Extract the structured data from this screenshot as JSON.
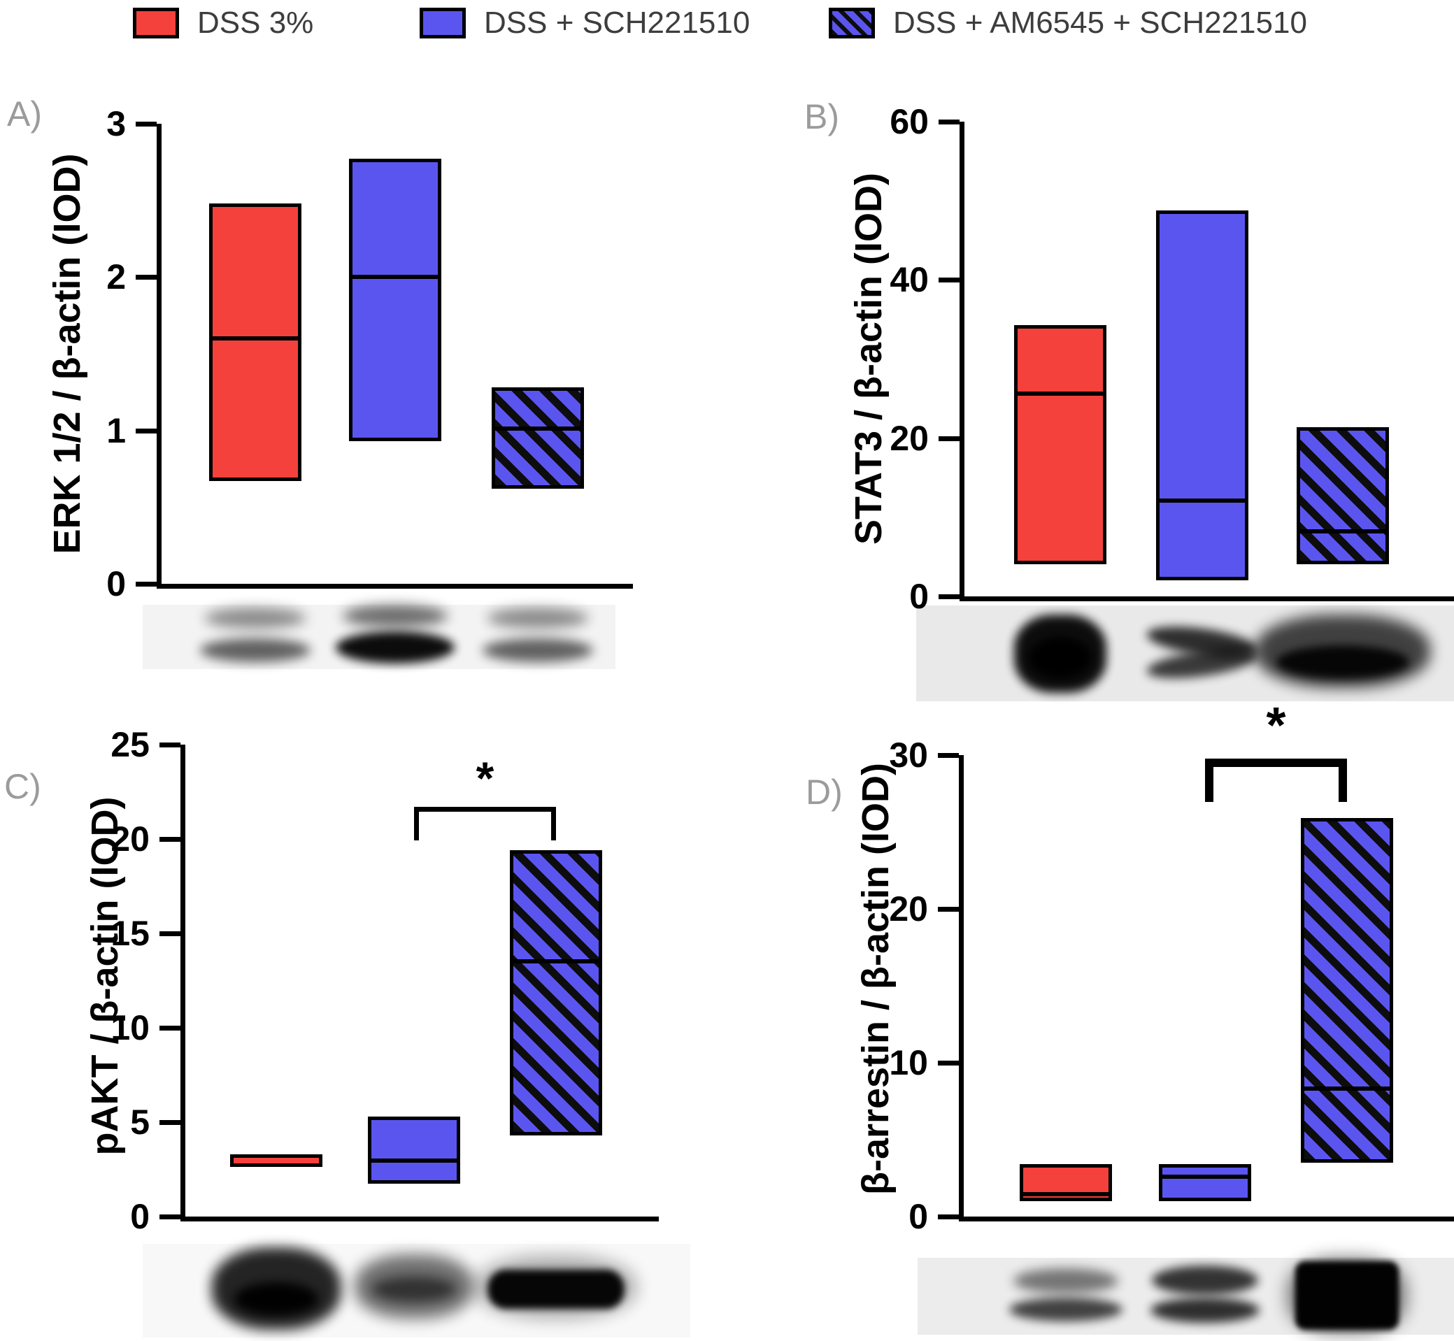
{
  "colors": {
    "red": "#f5413c",
    "blue": "#5b55f0",
    "hatch_stripe": "#0d0d0d",
    "axis": "#000000",
    "panel_letter": "#9b9b9b",
    "legend_text": "#3d3d3d"
  },
  "legend": {
    "items": [
      {
        "label": "DSS 3%",
        "style": "red"
      },
      {
        "label": "DSS + SCH221510",
        "style": "blue"
      },
      {
        "label": "DSS + AM6545 + SCH221510",
        "style": "hatch"
      }
    ]
  },
  "chart_data": [
    {
      "panel_label": "A)",
      "type": "floating-bar",
      "ylabel": "ERK 1/2 / β-actin (IOD)",
      "ylim": [
        0,
        3
      ],
      "yticks": [
        0,
        1,
        2,
        3
      ],
      "grid": false,
      "categories": [
        "DSS 3%",
        "DSS + SCH221510",
        "DSS + AM6545 + SCH221510"
      ],
      "series": [
        {
          "name": "DSS 3%",
          "style": "red",
          "min": 0.67,
          "max": 2.48,
          "median": 1.6
        },
        {
          "name": "DSS + SCH221510",
          "style": "blue",
          "min": 0.93,
          "max": 2.77,
          "median": 2.0
        },
        {
          "name": "DSS + AM6545 + SCH221510",
          "style": "hatch",
          "min": 0.62,
          "max": 1.28,
          "median": 1.01
        }
      ],
      "significance": null,
      "blot": {
        "shade": "#f3f3f3",
        "bands": [
          "faint-doublet",
          "dark-doublet",
          "faint-doublet"
        ]
      }
    },
    {
      "panel_label": "B)",
      "type": "floating-bar",
      "ylabel": "STAT3 / β-actin (IOD)",
      "ylim": [
        0,
        60
      ],
      "yticks": [
        0,
        20,
        40,
        60
      ],
      "grid": false,
      "categories": [
        "DSS 3%",
        "DSS + SCH221510",
        "DSS + AM6545 + SCH221510"
      ],
      "series": [
        {
          "name": "DSS 3%",
          "style": "red",
          "min": 4.1,
          "max": 34.3,
          "median": 25.6
        },
        {
          "name": "DSS + SCH221510",
          "style": "blue",
          "min": 2.0,
          "max": 48.8,
          "median": 12.1
        },
        {
          "name": "DSS + AM6545 + SCH221510",
          "style": "hatch",
          "min": 4.1,
          "max": 21.4,
          "median": 8.2
        }
      ],
      "significance": null,
      "blot": {
        "shade": "#e9e9e9",
        "bands": [
          "solid-blob",
          "bowtie",
          "wide-smear"
        ]
      }
    },
    {
      "panel_label": "C)",
      "type": "floating-bar",
      "ylabel": "pAKT / β-actin (IOD)",
      "ylim": [
        0,
        25
      ],
      "yticks": [
        0,
        5,
        10,
        15,
        20,
        25
      ],
      "grid": false,
      "categories": [
        "DSS 3%",
        "DSS + SCH221510",
        "DSS + AM6545 + SCH221510"
      ],
      "series": [
        {
          "name": "DSS 3%",
          "style": "red",
          "min": 2.63,
          "max": 3.3,
          "median": null
        },
        {
          "name": "DSS + SCH221510",
          "style": "blue",
          "min": 1.75,
          "max": 5.3,
          "median": 2.96
        },
        {
          "name": "DSS + AM6545 + SCH221510",
          "style": "hatch",
          "min": 4.3,
          "max": 19.4,
          "median": 13.5
        }
      ],
      "significance": {
        "between": [
          1,
          2
        ],
        "label": "*"
      },
      "blot": {
        "shade": "#f8f8f8",
        "bands": [
          "round-smear",
          "soft-smear",
          "sharp-bar"
        ]
      }
    },
    {
      "panel_label": "D)",
      "type": "floating-bar",
      "ylabel": "β-arrestin / β-actin (IOD)",
      "ylim": [
        0,
        30
      ],
      "yticks": [
        0,
        10,
        20,
        30
      ],
      "grid": false,
      "categories": [
        "DSS 3%",
        "DSS + SCH221510",
        "DSS + AM6545 + SCH221510"
      ],
      "series": [
        {
          "name": "DSS 3%",
          "style": "red",
          "min": 1.0,
          "max": 3.4,
          "median": 1.45
        },
        {
          "name": "DSS + SCH221510",
          "style": "blue",
          "min": 1.0,
          "max": 3.4,
          "median": 2.6
        },
        {
          "name": "DSS + AM6545 + SCH221510",
          "style": "hatch",
          "min": 3.5,
          "max": 25.9,
          "median": 8.3
        }
      ],
      "significance": {
        "between": [
          1,
          2
        ],
        "label": "*"
      },
      "blot": {
        "shade": "#ececec",
        "bands": [
          "light-doublet",
          "mid-doublet",
          "black-blob"
        ]
      }
    }
  ]
}
